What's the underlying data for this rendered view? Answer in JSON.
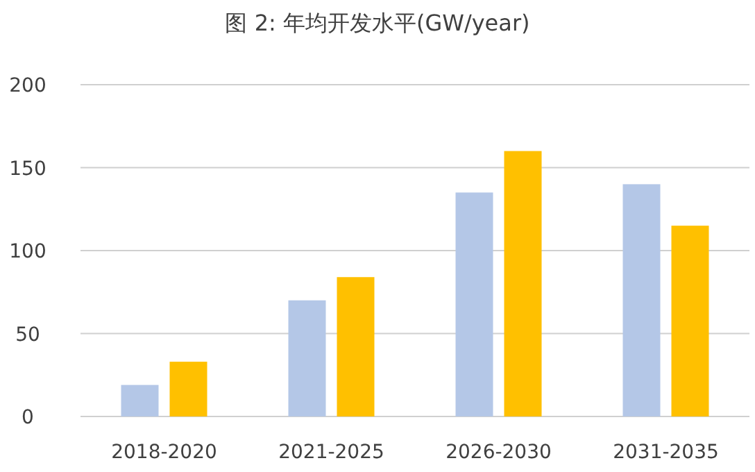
{
  "chart_data": {
    "type": "bar",
    "title": "图 2: 年均开发水平(GW/year)",
    "categories": [
      "2018-2020",
      "2021-2025",
      "2026-2030",
      "2031-2035"
    ],
    "series": [
      {
        "color": "#b4c7e7",
        "values": [
          19,
          70,
          135,
          140
        ]
      },
      {
        "color": "#ffc000",
        "values": [
          33,
          84,
          160,
          115
        ]
      }
    ],
    "ylim": [
      0,
      200
    ],
    "yticks": [
      0,
      50,
      100,
      150,
      200
    ],
    "grid": "y"
  }
}
